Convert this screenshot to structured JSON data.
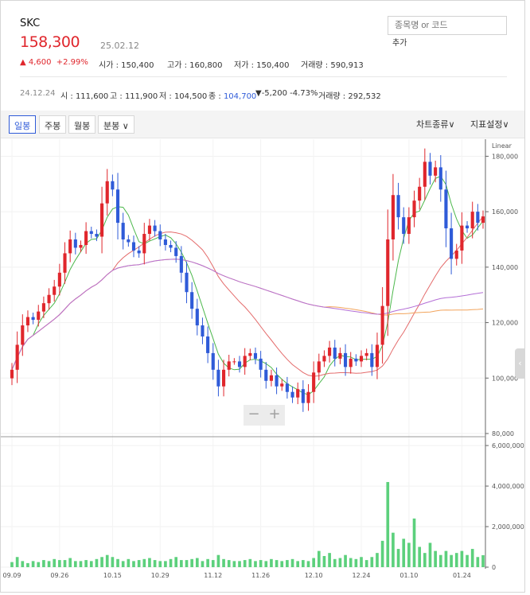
{
  "stock": {
    "name": "SKC",
    "price": "158,300",
    "date": "25.02.12",
    "change": "4,600",
    "change_pct": "+2.99%",
    "open_label": "시가 :",
    "open": "150,400",
    "high_label": "고가 :",
    "high": "160,800",
    "low_label": "저가 :",
    "low": "150,400",
    "volume_label": "거래량 :",
    "volume": "590,913"
  },
  "search": {
    "placeholder": "종목명 or 코드",
    "add_label": "추가"
  },
  "hover": {
    "date": "24.12.24",
    "open_label": "시 :",
    "open": "111,600",
    "high_label": "고 :",
    "high": "111,900",
    "low_label": "저 :",
    "low": "104,500",
    "close_label": "종 :",
    "close": "104,700",
    "change": "-5,200",
    "change_pct": "-4.73%",
    "volume_label": "거래량 :",
    "volume": "292,532"
  },
  "toolbar": {
    "tabs": [
      "일봉",
      "주봉",
      "월봉",
      "분봉"
    ],
    "chart_type": "차트종류",
    "indicator": "지표설정"
  },
  "colors": {
    "up": "#e0262c",
    "down": "#2f5bd8",
    "ma5": "#4cb84c",
    "ma20": "#e46b6b",
    "ma60": "#f2a45c",
    "ma120": "#b46fd6",
    "volume": "#5cd07c"
  },
  "chart_data": {
    "type": "candlestick",
    "scale_label": "Linear",
    "price_ticks": [
      "180,000",
      "160,000",
      "140,000",
      "120,000",
      "100,000",
      "80,000"
    ],
    "volume_ticks": [
      "6,000,000",
      "4,000,000",
      "2,000,000",
      "0"
    ],
    "x_labels": [
      "09.09",
      "09.26",
      "10.15",
      "10.29",
      "11.12",
      "11.26",
      "12.10",
      "12.24",
      "01.10",
      "01.24"
    ],
    "ylim": [
      80000,
      185000
    ],
    "volume_lim": [
      0,
      6200000
    ],
    "closes": [
      103000,
      112000,
      119000,
      122000,
      121000,
      124000,
      127000,
      130000,
      133000,
      138000,
      145000,
      150000,
      147000,
      148000,
      153000,
      152000,
      151000,
      163000,
      171000,
      168000,
      156000,
      150000,
      149000,
      146000,
      145000,
      152000,
      155000,
      153000,
      150000,
      148000,
      147000,
      144000,
      138000,
      131000,
      125000,
      119000,
      115000,
      109000,
      103000,
      97000,
      103000,
      106000,
      106000,
      104000,
      108000,
      109000,
      107000,
      103000,
      99000,
      101000,
      97000,
      98000,
      95000,
      93000,
      96000,
      91000,
      95000,
      102000,
      106000,
      108000,
      111000,
      107000,
      109000,
      104000,
      107000,
      106000,
      108000,
      109000,
      104000,
      112000,
      126000,
      150000,
      166000,
      158000,
      152000,
      158000,
      164000,
      169000,
      178000,
      173000,
      176000,
      168000,
      154000,
      143000,
      146000,
      155000,
      154000,
      160000,
      156000,
      158300
    ],
    "volumes": [
      250000,
      500000,
      300000,
      200000,
      300000,
      250000,
      350000,
      300000,
      400000,
      350000,
      350000,
      450000,
      300000,
      300000,
      350000,
      300000,
      400000,
      500000,
      600000,
      500000,
      400000,
      300000,
      400000,
      300000,
      350000,
      400000,
      450000,
      350000,
      300000,
      300000,
      400000,
      500000,
      350000,
      350000,
      400000,
      450000,
      300000,
      400000,
      350000,
      600000,
      400000,
      350000,
      300000,
      300000,
      350000,
      400000,
      300000,
      350000,
      300000,
      400000,
      350000,
      300000,
      350000,
      400000,
      300000,
      350000,
      300000,
      450000,
      800000,
      550000,
      700000,
      400000,
      450000,
      600000,
      450000,
      400000,
      500000,
      350000,
      500000,
      700000,
      1300000,
      4200000,
      1700000,
      900000,
      1400000,
      1200000,
      2400000,
      1000000,
      700000,
      1200000,
      800000,
      600000,
      800000,
      600000,
      700000,
      800000,
      600000,
      900000,
      500000,
      590913
    ]
  }
}
